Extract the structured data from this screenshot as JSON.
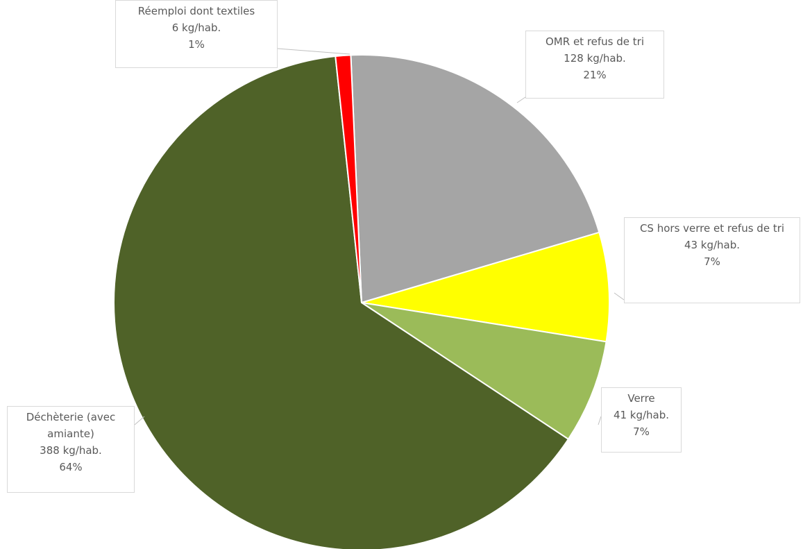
{
  "chart_data": {
    "type": "pie",
    "start_angle_deg": -2.5,
    "slices": [
      {
        "label": "OMR et refus de tri",
        "value_text": "128 kg/hab.",
        "percent_text": "21%",
        "value": 128,
        "color": "#a5a5a5"
      },
      {
        "label": "CS hors verre et refus de tri",
        "value_text": "43 kg/hab.",
        "percent_text": "7%",
        "value": 43,
        "color": "#ffff00"
      },
      {
        "label": "Verre",
        "value_text": "41 kg/hab.",
        "percent_text": "7%",
        "value": 41,
        "color": "#9bbb59"
      },
      {
        "label": "Déchèterie (avec amiante)",
        "value_text": "388 kg/hab.",
        "percent_text": "64%",
        "value": 388,
        "color": "#4f6228"
      },
      {
        "label": "Réemploi  dont textiles",
        "value_text": "6 kg/hab.",
        "percent_text": "1%",
        "value": 6,
        "color": "#ff0000"
      }
    ]
  }
}
